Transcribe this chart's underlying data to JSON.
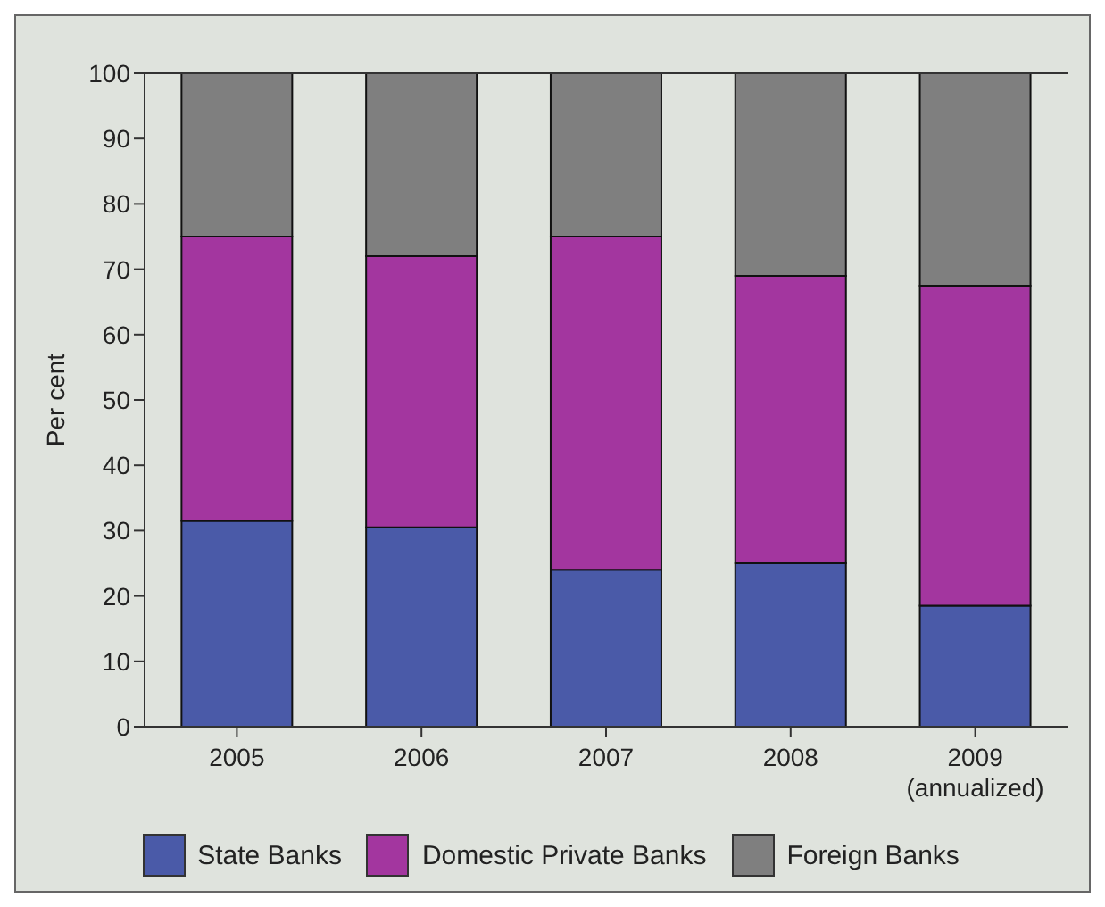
{
  "chart_data": {
    "type": "bar",
    "stacked": true,
    "ylabel": "Per cent",
    "categories": [
      "2005",
      "2006",
      "2007",
      "2008",
      "2009\n(annualized)"
    ],
    "series": [
      {
        "name": "State Banks",
        "color": "#4a5aa8",
        "values": [
          31.5,
          30.5,
          24,
          25,
          18.5
        ]
      },
      {
        "name": "Domestic Private Banks",
        "color": "#a3369f",
        "values": [
          43.5,
          41.5,
          51,
          44,
          49
        ]
      },
      {
        "name": "Foreign Banks",
        "color": "#7f7f7f",
        "values": [
          25,
          28,
          25,
          31,
          32.5
        ]
      }
    ],
    "ylim": [
      0,
      100
    ],
    "yticks": [
      0,
      10,
      20,
      30,
      40,
      50,
      60,
      70,
      80,
      90,
      100
    ],
    "grid": false,
    "legend": "bottom"
  }
}
